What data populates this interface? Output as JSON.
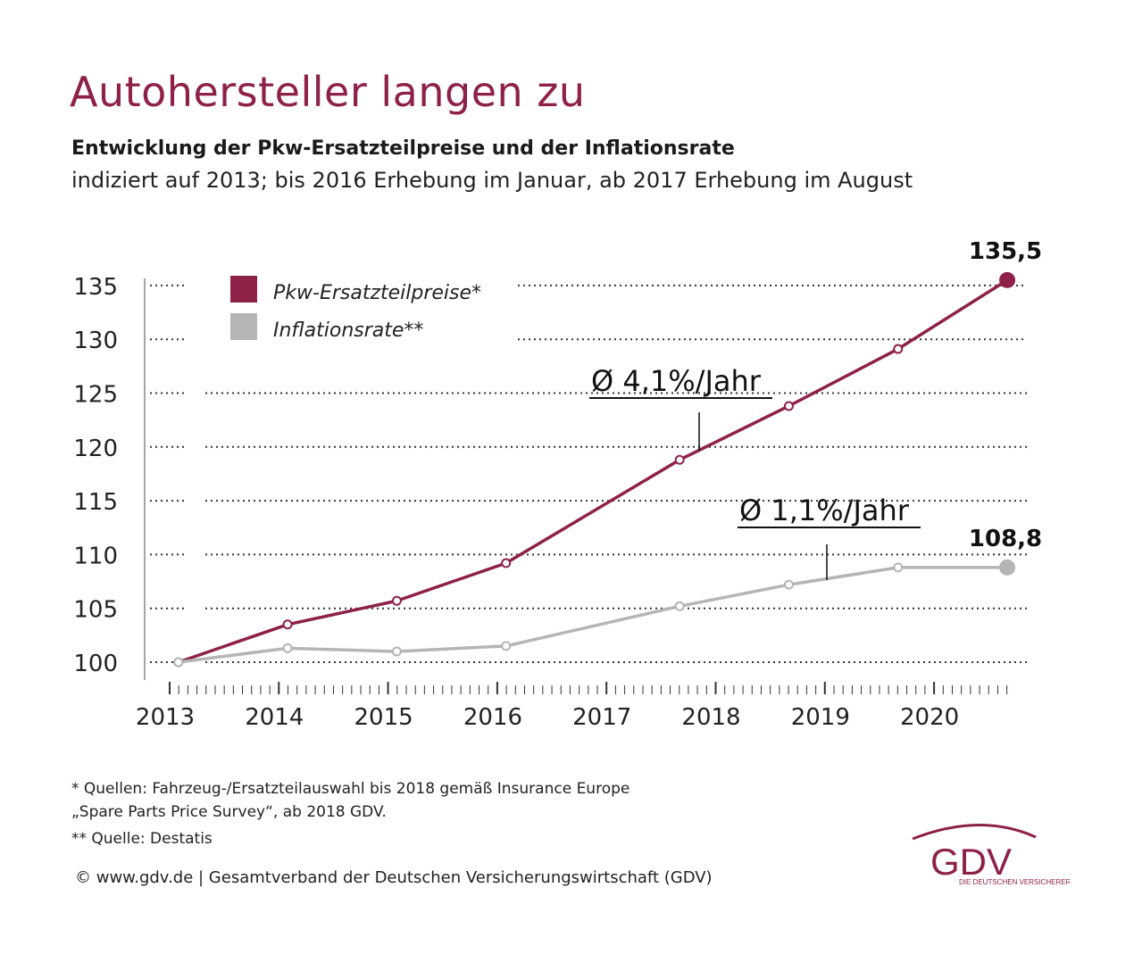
{
  "title": "Autohersteller langen zu",
  "subtitle": "Entwicklung der Pkw-Ersatzteilpreise und der Inflationsrate",
  "subnote": "indiziert auf 2013; bis 2016 Erhebung im Januar, ab 2017 Erhebung im August",
  "chart_data": {
    "type": "line",
    "y_ticks": [
      "100",
      "105",
      "110",
      "115",
      "120",
      "125",
      "130",
      "135"
    ],
    "x_ticks": [
      "2013",
      "2014",
      "2015",
      "2016",
      "2017",
      "2018",
      "2019",
      "2020"
    ],
    "ylim": [
      100,
      135.5
    ],
    "grid": true,
    "series": [
      {
        "name": "Pkw-Ersatzteilpreise*",
        "color": "#8e2148",
        "points": [
          {
            "x": 2013.08,
            "y": 100.0
          },
          {
            "x": 2014.08,
            "y": 103.5
          },
          {
            "x": 2015.08,
            "y": 105.7
          },
          {
            "x": 2016.08,
            "y": 109.2
          },
          {
            "x": 2017.67,
            "y": 118.8
          },
          {
            "x": 2018.67,
            "y": 123.8
          },
          {
            "x": 2019.67,
            "y": 129.1
          },
          {
            "x": 2020.67,
            "y": 135.5
          }
        ],
        "end_label": "135,5",
        "trend_label": "Ø 4,1%/Jahr"
      },
      {
        "name": "Inflationsrate**",
        "color": "#b5b5b5",
        "points": [
          {
            "x": 2013.08,
            "y": 100.0
          },
          {
            "x": 2014.08,
            "y": 101.3
          },
          {
            "x": 2015.08,
            "y": 101.0
          },
          {
            "x": 2016.08,
            "y": 101.5
          },
          {
            "x": 2017.67,
            "y": 105.2
          },
          {
            "x": 2018.67,
            "y": 107.2
          },
          {
            "x": 2019.67,
            "y": 108.8
          },
          {
            "x": 2020.67,
            "y": 108.8
          }
        ],
        "end_label": "108,8",
        "trend_label": "Ø 1,1%/Jahr"
      }
    ]
  },
  "footnotes": {
    "line1": "* Quellen: Fahrzeug-/Ersatzteilauswahl bis 2018 gemäß Insurance Europe",
    "line2": "„Spare Parts Price Survey“, ab 2018 GDV.",
    "line3": "** Quelle: Destatis"
  },
  "copyright": "© www.gdv.de | Gesamtverband der Deutschen Versicherungswirtschaft (GDV)",
  "logo": {
    "text": "GDV",
    "tagline": "DIE DEUTSCHEN VERSICHERER",
    "color": "#8e2148"
  }
}
